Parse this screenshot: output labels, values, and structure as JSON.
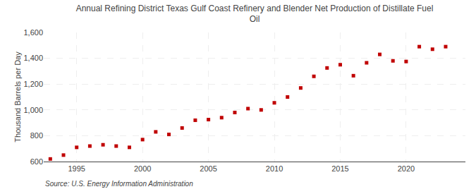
{
  "chart_data": {
    "type": "scatter",
    "title": "Annual Refining District Texas Gulf Coast Refinery and Blender Net Production of Distillate Fuel\nOil",
    "ylabel": "Thousand Barrels per Day",
    "source": "Source: U.S. Energy Information Administration",
    "x": [
      1993,
      1994,
      1995,
      1996,
      1997,
      1998,
      1999,
      2000,
      2001,
      2002,
      2003,
      2004,
      2005,
      2006,
      2007,
      2008,
      2009,
      2010,
      2011,
      2012,
      2013,
      2014,
      2015,
      2016,
      2017,
      2018,
      2019,
      2020,
      2021,
      2022,
      2023
    ],
    "values": [
      620,
      650,
      710,
      720,
      730,
      720,
      710,
      770,
      830,
      810,
      860,
      920,
      925,
      940,
      980,
      1010,
      1000,
      1055,
      1100,
      1170,
      1260,
      1325,
      1350,
      1265,
      1365,
      1430,
      1380,
      1375,
      1490,
      1470,
      1490
    ],
    "color": "#c00000",
    "marker": "square",
    "xlim": [
      1992.5,
      2024.5
    ],
    "xticks": [
      1995,
      2000,
      2005,
      2010,
      2015,
      2020
    ],
    "ylim": [
      600,
      1600
    ],
    "yticks": [
      600,
      800,
      {
        "value": 1000,
        "label": "1,000"
      },
      {
        "value": 1200,
        "label": "1,200"
      },
      {
        "value": 1400,
        "label": "1,400"
      },
      {
        "value": 1600,
        "label": "1,600"
      }
    ],
    "grid": true
  }
}
